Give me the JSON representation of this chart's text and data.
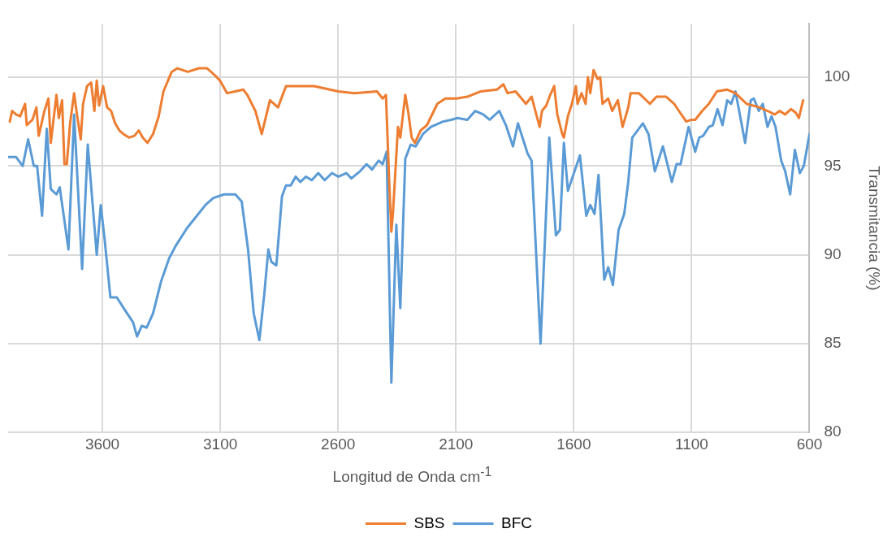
{
  "chart_data": {
    "type": "line",
    "xlabel": "Longitud de Onda cm$^{-1}$",
    "ylabel": "Transmitancia (%)",
    "xlim": [
      4000,
      600
    ],
    "ylim": [
      80,
      103
    ],
    "xticks": [
      3600,
      3100,
      2600,
      2100,
      1600,
      1100,
      600
    ],
    "yticks": [
      80,
      85,
      90,
      95,
      100
    ],
    "grid": true,
    "legend": "bottom",
    "series": [
      {
        "name": "SBS",
        "color": "#ed7d31",
        "x": [
          3993,
          3983,
          3966,
          3949,
          3928,
          3921,
          3897,
          3880,
          3870,
          3846,
          3829,
          3819,
          3795,
          3785,
          3771,
          3761,
          3751,
          3737,
          3720,
          3710,
          3692,
          3682,
          3665,
          3648,
          3634,
          3624,
          3614,
          3597,
          3580,
          3563,
          3546,
          3528,
          3511,
          3487,
          3464,
          3446,
          3429,
          3409,
          3385,
          3361,
          3341,
          3306,
          3282,
          3238,
          3190,
          3156,
          3122,
          3101,
          3071,
          3036,
          3002,
          2985,
          2951,
          2924,
          2889,
          2855,
          2821,
          2780,
          2702,
          2599,
          2531,
          2435,
          2411,
          2397,
          2384,
          2374,
          2367,
          2346,
          2336,
          2315,
          2302,
          2288,
          2274,
          2250,
          2223,
          2179,
          2145,
          2097,
          2052,
          1994,
          1926,
          1899,
          1881,
          1847,
          1803,
          1779,
          1745,
          1735,
          1717,
          1700,
          1683,
          1670,
          1649,
          1642,
          1625,
          1608,
          1591,
          1584,
          1567,
          1550,
          1540,
          1530,
          1516,
          1499,
          1488,
          1478,
          1454,
          1437,
          1413,
          1393,
          1369,
          1359,
          1324,
          1277,
          1249,
          1208,
          1174,
          1154,
          1123,
          1102,
          1085,
          1055,
          1027,
          993,
          949,
          914,
          867,
          812,
          778,
          747,
          727,
          703,
          679,
          658,
          645,
          627
        ],
        "values": [
          97.5,
          98.1,
          97.9,
          97.8,
          98.5,
          97.3,
          97.6,
          98.3,
          96.7,
          98.1,
          98.8,
          96.3,
          99.0,
          97.7,
          98.7,
          95.1,
          95.1,
          97.4,
          99.1,
          98.1,
          96.5,
          98.5,
          99.5,
          99.7,
          98.1,
          99.8,
          98.4,
          99.5,
          98.3,
          98.1,
          97.4,
          97.0,
          96.8,
          96.6,
          96.7,
          97.0,
          96.6,
          96.3,
          96.8,
          97.8,
          99.2,
          100.3,
          100.5,
          100.3,
          100.5,
          100.5,
          100.1,
          99.8,
          99.1,
          99.2,
          99.3,
          99.0,
          98.1,
          96.8,
          98.7,
          98.3,
          99.5,
          99.5,
          99.5,
          99.2,
          99.1,
          99.2,
          98.8,
          99.0,
          94.4,
          91.3,
          92.4,
          97.2,
          96.6,
          99.0,
          98.0,
          96.6,
          96.3,
          97.0,
          97.3,
          98.5,
          98.8,
          98.8,
          98.9,
          99.2,
          99.3,
          99.6,
          99.1,
          99.2,
          98.5,
          98.9,
          97.2,
          98.1,
          98.4,
          99.0,
          99.5,
          97.9,
          96.8,
          96.6,
          97.8,
          98.5,
          99.5,
          98.5,
          99.1,
          98.5,
          100.0,
          99.1,
          100.4,
          99.9,
          100.0,
          98.5,
          98.8,
          98.1,
          98.7,
          97.2,
          98.3,
          99.1,
          99.1,
          98.5,
          98.9,
          98.9,
          98.5,
          98.1,
          97.5,
          97.6,
          97.6,
          98.1,
          98.5,
          99.2,
          99.3,
          99.1,
          98.5,
          98.3,
          98.1,
          97.9,
          98.1,
          97.9,
          98.2,
          98.0,
          97.7,
          98.7
        ]
      },
      {
        "name": "BFC",
        "color": "#5b9bd5",
        "x": [
          4000,
          3966,
          3938,
          3915,
          3891,
          3877,
          3856,
          3836,
          3819,
          3795,
          3781,
          3744,
          3720,
          3686,
          3662,
          3624,
          3607,
          3590,
          3566,
          3539,
          3505,
          3470,
          3453,
          3433,
          3412,
          3385,
          3351,
          3317,
          3289,
          3241,
          3163,
          3129,
          3084,
          3036,
          3009,
          2982,
          2958,
          2934,
          2913,
          2896,
          2883,
          2862,
          2838,
          2821,
          2801,
          2780,
          2760,
          2736,
          2712,
          2684,
          2657,
          2626,
          2599,
          2565,
          2544,
          2507,
          2479,
          2456,
          2428,
          2411,
          2394,
          2374,
          2353,
          2336,
          2315,
          2292,
          2271,
          2240,
          2206,
          2155,
          2121,
          2093,
          2052,
          2018,
          1984,
          1957,
          1916,
          1888,
          1858,
          1837,
          1796,
          1779,
          1741,
          1704,
          1676,
          1659,
          1642,
          1625,
          1574,
          1547,
          1530,
          1512,
          1495,
          1471,
          1454,
          1434,
          1410,
          1386,
          1369,
          1352,
          1307,
          1283,
          1256,
          1222,
          1184,
          1164,
          1147,
          1113,
          1085,
          1068,
          1051,
          1027,
          1010,
          990,
          969,
          949,
          932,
          914,
          873,
          849,
          836,
          815,
          798,
          778,
          761,
          744,
          720,
          703,
          682,
          662,
          641,
          624,
          600
        ],
        "values": [
          95.5,
          95.5,
          95.0,
          96.5,
          95.0,
          95.0,
          92.2,
          97.1,
          93.7,
          93.4,
          93.8,
          90.3,
          97.9,
          89.2,
          96.2,
          90.0,
          92.8,
          90.8,
          87.6,
          87.6,
          86.9,
          86.2,
          85.4,
          86.0,
          85.9,
          86.7,
          88.5,
          89.8,
          90.5,
          91.5,
          92.8,
          93.2,
          93.4,
          93.4,
          93.0,
          90.3,
          86.7,
          85.2,
          87.8,
          90.3,
          89.6,
          89.4,
          93.3,
          93.9,
          93.9,
          94.4,
          94.1,
          94.4,
          94.2,
          94.6,
          94.2,
          94.6,
          94.4,
          94.6,
          94.3,
          94.7,
          95.1,
          94.8,
          95.3,
          95.1,
          95.8,
          82.8,
          91.7,
          87.0,
          95.4,
          96.2,
          96.1,
          96.8,
          97.2,
          97.5,
          97.6,
          97.7,
          97.6,
          98.1,
          97.9,
          97.6,
          98.1,
          97.3,
          96.1,
          97.4,
          95.7,
          95.3,
          85.0,
          96.6,
          91.1,
          91.4,
          96.3,
          93.6,
          95.6,
          92.2,
          92.8,
          92.3,
          94.5,
          88.6,
          89.3,
          88.3,
          91.4,
          92.3,
          94.1,
          96.6,
          97.4,
          96.8,
          94.7,
          96.1,
          94.1,
          95.1,
          95.1,
          97.2,
          95.8,
          96.6,
          96.7,
          97.2,
          97.3,
          98.2,
          97.3,
          98.7,
          98.5,
          99.2,
          96.3,
          98.7,
          98.8,
          98.1,
          98.5,
          97.2,
          97.8,
          97.2,
          95.3,
          94.7,
          93.4,
          95.9,
          94.6,
          95.0,
          96.8
        ]
      }
    ]
  }
}
